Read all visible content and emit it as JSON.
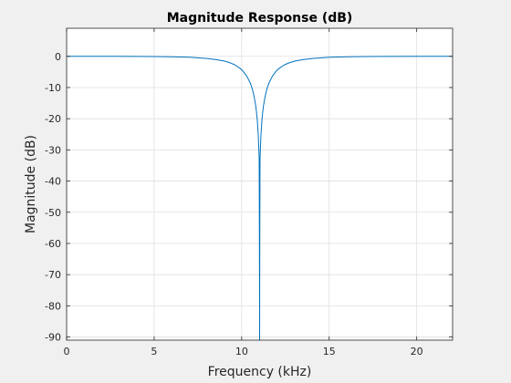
{
  "chart_data": {
    "type": "line",
    "title": "Magnitude Response (dB)",
    "xlabel": "Frequency (kHz)",
    "ylabel": "Magnitude (dB)",
    "xlim": [
      0,
      22.05
    ],
    "ylim": [
      -91,
      9
    ],
    "grid": true,
    "xticks": [
      0,
      5,
      10,
      15,
      20
    ],
    "yticks": [
      0,
      -10,
      -20,
      -30,
      -40,
      -50,
      -60,
      -70,
      -80,
      -90
    ],
    "notch_frequency": 11.025,
    "series": [
      {
        "color": "#0072bd",
        "x": [
          0,
          2,
          4,
          5,
          6,
          7,
          7.5,
          8,
          8.5,
          9,
          9.3,
          9.6,
          9.9,
          10.1,
          10.3,
          10.5,
          10.6,
          10.7,
          10.8,
          10.85,
          10.9,
          10.95,
          11.0,
          11.005,
          11.0125,
          11.02,
          11.025,
          11.03,
          11.0375,
          11.045,
          11.05,
          11.1,
          11.15,
          11.2,
          11.25,
          11.35,
          11.45,
          11.55,
          11.75,
          11.95,
          12.15,
          12.45,
          12.75,
          13.05,
          13.55,
          14.05,
          14.55,
          15.05,
          16.05,
          17.05,
          18.05,
          20.05,
          22.05
        ],
        "y": [
          0,
          0,
          -0.02,
          -0.05,
          -0.13,
          -0.3,
          -0.45,
          -0.7,
          -1.0,
          -1.5,
          -2.0,
          -2.7,
          -3.8,
          -4.9,
          -6.4,
          -8.7,
          -10.3,
          -12.6,
          -15.7,
          -18.0,
          -21.0,
          -25.5,
          -32.5,
          -40,
          -55,
          -72,
          -91,
          -72,
          -55,
          -40,
          -32.5,
          -25.5,
          -21.0,
          -18.0,
          -15.7,
          -12.6,
          -10.3,
          -8.7,
          -6.4,
          -4.9,
          -3.8,
          -2.7,
          -2.0,
          -1.5,
          -1.0,
          -0.7,
          -0.45,
          -0.3,
          -0.13,
          -0.05,
          -0.02,
          0,
          0
        ]
      }
    ]
  }
}
